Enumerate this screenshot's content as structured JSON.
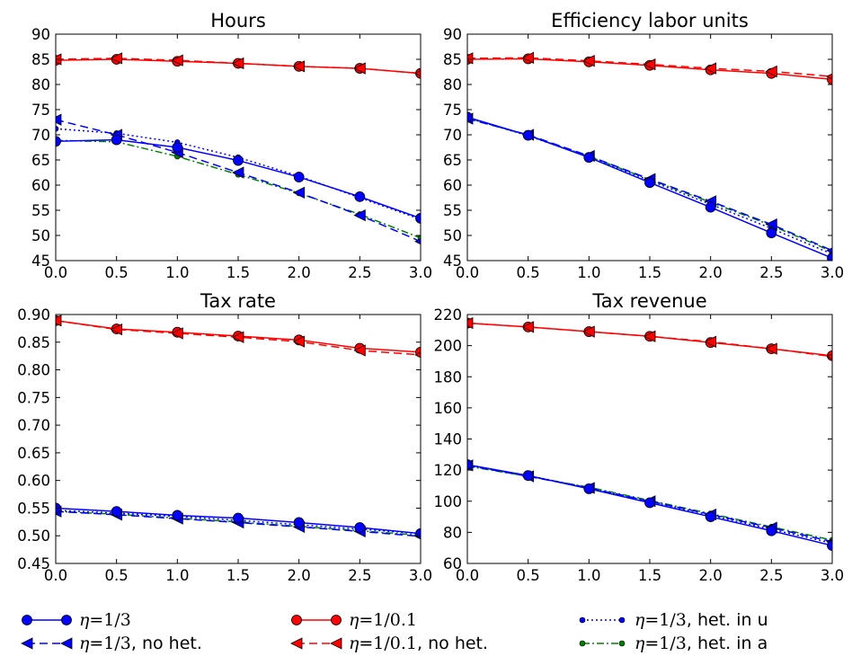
{
  "chart_data": [
    {
      "type": "line",
      "title": "Hours",
      "x": [
        0.0,
        0.5,
        1.0,
        1.5,
        2.0,
        2.5,
        3.0
      ],
      "xlim": [
        0.0,
        3.0
      ],
      "ylim": [
        45,
        90
      ],
      "xticks": [
        "0.0",
        "0.5",
        "1.0",
        "1.5",
        "2.0",
        "2.5",
        "3.0"
      ],
      "yticks": [
        "45",
        "50",
        "55",
        "60",
        "65",
        "70",
        "75",
        "80",
        "85",
        "90"
      ],
      "series": [
        {
          "key": "eta13",
          "values": [
            68.7,
            69.0,
            67.5,
            64.9,
            61.6,
            57.7,
            53.4
          ]
        },
        {
          "key": "eta13_nohet",
          "values": [
            73.0,
            70.0,
            66.5,
            62.5,
            58.5,
            54.0,
            48.8
          ]
        },
        {
          "key": "eta01",
          "values": [
            84.8,
            85.0,
            84.6,
            84.2,
            83.6,
            83.2,
            82.2
          ]
        },
        {
          "key": "eta01_nohet",
          "values": [
            85.0,
            85.2,
            84.8,
            84.2,
            83.6,
            83.2,
            82.2
          ]
        },
        {
          "key": "het_u",
          "values": [
            71.2,
            70.3,
            68.5,
            65.5,
            61.8,
            57.5,
            53.2
          ]
        },
        {
          "key": "het_a",
          "values": [
            68.9,
            68.6,
            65.7,
            62.1,
            58.4,
            54.2,
            49.5
          ]
        }
      ]
    },
    {
      "type": "line",
      "title": "Efficiency labor units",
      "x": [
        0.0,
        0.5,
        1.0,
        1.5,
        2.0,
        2.5,
        3.0
      ],
      "xlim": [
        0.0,
        3.0
      ],
      "ylim": [
        45,
        90
      ],
      "xticks": [
        "0.0",
        "0.5",
        "1.0",
        "1.5",
        "2.0",
        "2.5",
        "3.0"
      ],
      "yticks": [
        "45",
        "50",
        "55",
        "60",
        "65",
        "70",
        "75",
        "80",
        "85",
        "90"
      ],
      "series": [
        {
          "key": "eta13",
          "values": [
            73.5,
            69.9,
            65.5,
            60.5,
            55.6,
            50.5,
            45.5
          ]
        },
        {
          "key": "eta13_nohet",
          "values": [
            73.2,
            70.0,
            65.8,
            61.2,
            56.8,
            52.2,
            47.0
          ]
        },
        {
          "key": "eta01",
          "values": [
            85.0,
            85.1,
            84.5,
            83.8,
            82.9,
            82.2,
            81.0
          ]
        },
        {
          "key": "eta01_nohet",
          "values": [
            85.2,
            85.3,
            84.7,
            84.0,
            83.2,
            82.6,
            81.6
          ]
        },
        {
          "key": "het_u",
          "values": [
            73.4,
            69.8,
            65.6,
            60.9,
            56.2,
            51.4,
            46.3
          ]
        },
        {
          "key": "het_a",
          "values": [
            73.3,
            69.9,
            65.7,
            61.1,
            56.6,
            52.0,
            46.8
          ]
        }
      ]
    },
    {
      "type": "line",
      "title": "Tax rate",
      "x": [
        0.0,
        0.5,
        1.0,
        1.5,
        2.0,
        2.5,
        3.0
      ],
      "xlim": [
        0.0,
        3.0
      ],
      "ylim": [
        0.45,
        0.9
      ],
      "xticks": [
        "0.0",
        "0.5",
        "1.0",
        "1.5",
        "2.0",
        "2.5",
        "3.0"
      ],
      "yticks": [
        "0.45",
        "0.50",
        "0.55",
        "0.60",
        "0.65",
        "0.70",
        "0.75",
        "0.80",
        "0.85",
        "0.90"
      ],
      "series": [
        {
          "key": "eta13",
          "values": [
            0.55,
            0.544,
            0.537,
            0.532,
            0.524,
            0.515,
            0.504
          ]
        },
        {
          "key": "eta13_nohet",
          "values": [
            0.544,
            0.538,
            0.531,
            0.524,
            0.516,
            0.508,
            0.499
          ]
        },
        {
          "key": "eta01",
          "values": [
            0.889,
            0.874,
            0.868,
            0.861,
            0.854,
            0.839,
            0.832
          ]
        },
        {
          "key": "eta01_nohet",
          "values": [
            0.889,
            0.873,
            0.866,
            0.859,
            0.851,
            0.835,
            0.827
          ]
        },
        {
          "key": "het_u",
          "values": [
            0.546,
            0.541,
            0.535,
            0.528,
            0.52,
            0.512,
            0.504
          ]
        },
        {
          "key": "het_a",
          "values": [
            0.544,
            0.539,
            0.532,
            0.525,
            0.517,
            0.509,
            0.501
          ]
        }
      ]
    },
    {
      "type": "line",
      "title": "Tax revenue",
      "x": [
        0.0,
        0.5,
        1.0,
        1.5,
        2.0,
        2.5,
        3.0
      ],
      "xlim": [
        0.0,
        3.0
      ],
      "ylim": [
        60,
        220
      ],
      "xticks": [
        "0.0",
        "0.5",
        "1.0",
        "1.5",
        "2.0",
        "2.5",
        "3.0"
      ],
      "yticks": [
        "60",
        "80",
        "100",
        "120",
        "140",
        "160",
        "180",
        "200",
        "220"
      ],
      "series": [
        {
          "key": "eta13",
          "values": [
            123.5,
            116.5,
            108.0,
            99.0,
            90.0,
            81.0,
            71.5
          ]
        },
        {
          "key": "eta13_nohet",
          "values": [
            123.0,
            116.0,
            108.5,
            100.0,
            91.5,
            83.0,
            74.0
          ]
        },
        {
          "key": "eta01",
          "values": [
            214.5,
            212.0,
            209.0,
            206.0,
            202.0,
            198.0,
            193.5
          ]
        },
        {
          "key": "eta01_nohet",
          "values": [
            214.5,
            212.0,
            209.0,
            206.0,
            202.5,
            198.0,
            193.0
          ]
        },
        {
          "key": "het_u",
          "values": [
            123.0,
            116.5,
            108.5,
            99.8,
            91.0,
            82.0,
            73.0
          ]
        },
        {
          "key": "het_a",
          "values": [
            122.5,
            116.0,
            109.0,
            100.5,
            92.0,
            83.5,
            75.0
          ]
        }
      ]
    }
  ],
  "legend": {
    "placement": "bottom",
    "entries": [
      {
        "key": "eta13",
        "eta": "η",
        "eq": "=1/3",
        "suffix": "",
        "color": "#0000ff",
        "dash": "solid",
        "marker": "circle"
      },
      {
        "key": "eta13_nohet",
        "eta": "η",
        "eq": "=1/3",
        "suffix": ", no het.",
        "color": "#0000ff",
        "dash": "dashed",
        "marker": "triangle-left"
      },
      {
        "key": "eta01",
        "eta": "η",
        "eq": "=1/0.1",
        "suffix": "",
        "color": "#ff0000",
        "dash": "solid",
        "marker": "circle"
      },
      {
        "key": "eta01_nohet",
        "eta": "η",
        "eq": "=1/0.1",
        "suffix": ", no het.",
        "color": "#ff0000",
        "dash": "dashed",
        "marker": "triangle-left"
      },
      {
        "key": "het_u",
        "eta": "η",
        "eq": "=1/3",
        "suffix": ", het. in u",
        "color": "#0000ff",
        "dash": "dotted",
        "marker": "small-circle"
      },
      {
        "key": "het_a",
        "eta": "η",
        "eq": "=1/3",
        "suffix": ", het. in a",
        "color": "#008000",
        "dash": "dashdot",
        "marker": "small-circle"
      }
    ]
  }
}
